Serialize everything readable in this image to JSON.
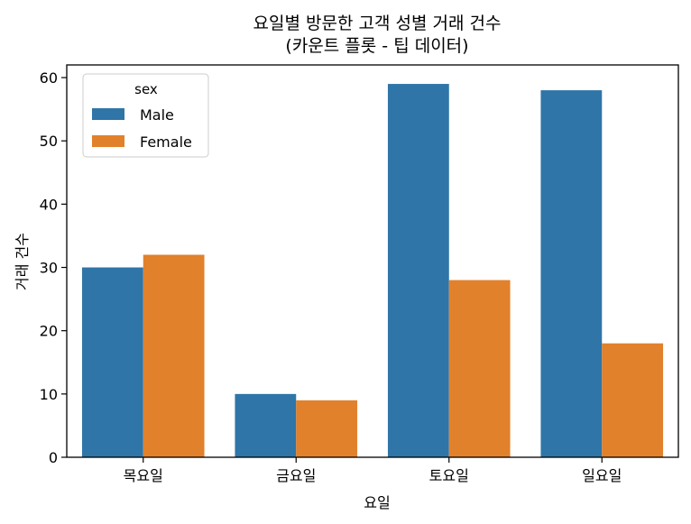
{
  "chart_data": {
    "type": "bar",
    "title_line1": "요일별 방문한 고객 성별 거래 건수",
    "title_line2": "(카운트 플롯 - 팁 데이터)",
    "xlabel": "요일",
    "ylabel": "거래 건수",
    "categories": [
      "목요일",
      "금요일",
      "토요일",
      "일요일"
    ],
    "series": [
      {
        "name": "Male",
        "values": [
          30,
          10,
          59,
          58
        ],
        "color": "#2f75a8"
      },
      {
        "name": "Female",
        "values": [
          32,
          9,
          28,
          18
        ],
        "color": "#e1812c"
      }
    ],
    "ylim": [
      0,
      62
    ],
    "yticks": [
      0,
      10,
      20,
      30,
      40,
      50,
      60
    ],
    "legend": {
      "title": "sex",
      "placement": "top-left"
    },
    "grid": false
  }
}
